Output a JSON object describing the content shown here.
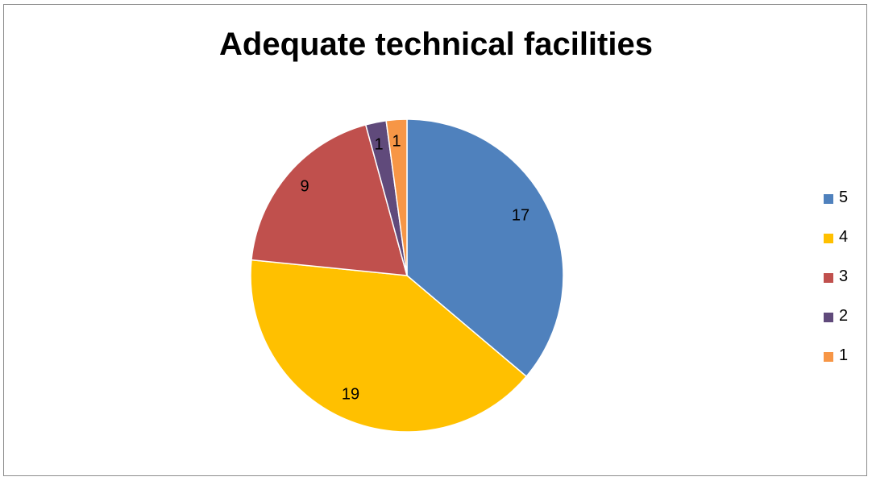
{
  "chart_data": {
    "type": "pie",
    "title": "Adequate technical facilities",
    "categories": [
      "5",
      "4",
      "3",
      "2",
      "1"
    ],
    "values": [
      17,
      19,
      9,
      1,
      1
    ],
    "colors": [
      "#4f81bd",
      "#ffc000",
      "#c0504d",
      "#604a7b",
      "#f79646"
    ],
    "data_labels": [
      "17",
      "19",
      "9",
      "1",
      "1"
    ],
    "start_angle_deg": 0,
    "direction": "clockwise",
    "legend_position": "right"
  }
}
